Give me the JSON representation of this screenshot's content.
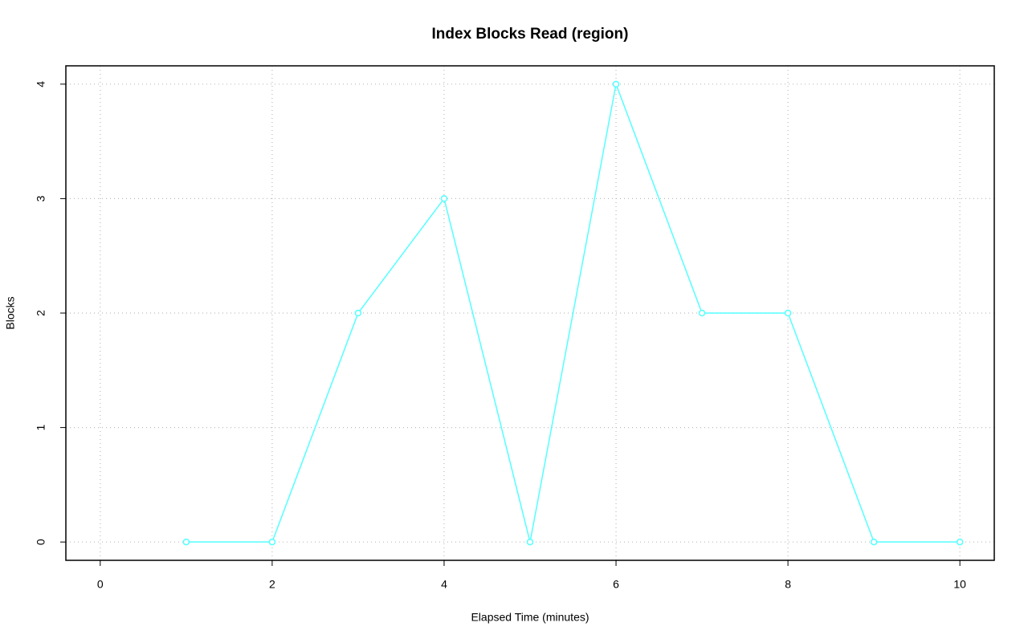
{
  "chart_data": {
    "type": "line",
    "title": "Index Blocks Read (region)",
    "x_label": "Elapsed Time (minutes)",
    "y_label": "Blocks",
    "x": [
      1,
      2,
      3,
      4,
      5,
      6,
      7,
      8,
      9,
      10
    ],
    "series": [
      {
        "color": "#55ffff",
        "values": [
          0,
          0,
          2,
          3,
          0,
          4,
          2,
          2,
          0,
          0
        ]
      }
    ],
    "xlim": [
      -0.4,
      10.4
    ],
    "ylim": [
      -0.16,
      4.16
    ],
    "xticks": [
      0,
      2,
      4,
      6,
      8,
      10
    ],
    "yticks": [
      0,
      1,
      2,
      3,
      4
    ],
    "grid": true
  }
}
